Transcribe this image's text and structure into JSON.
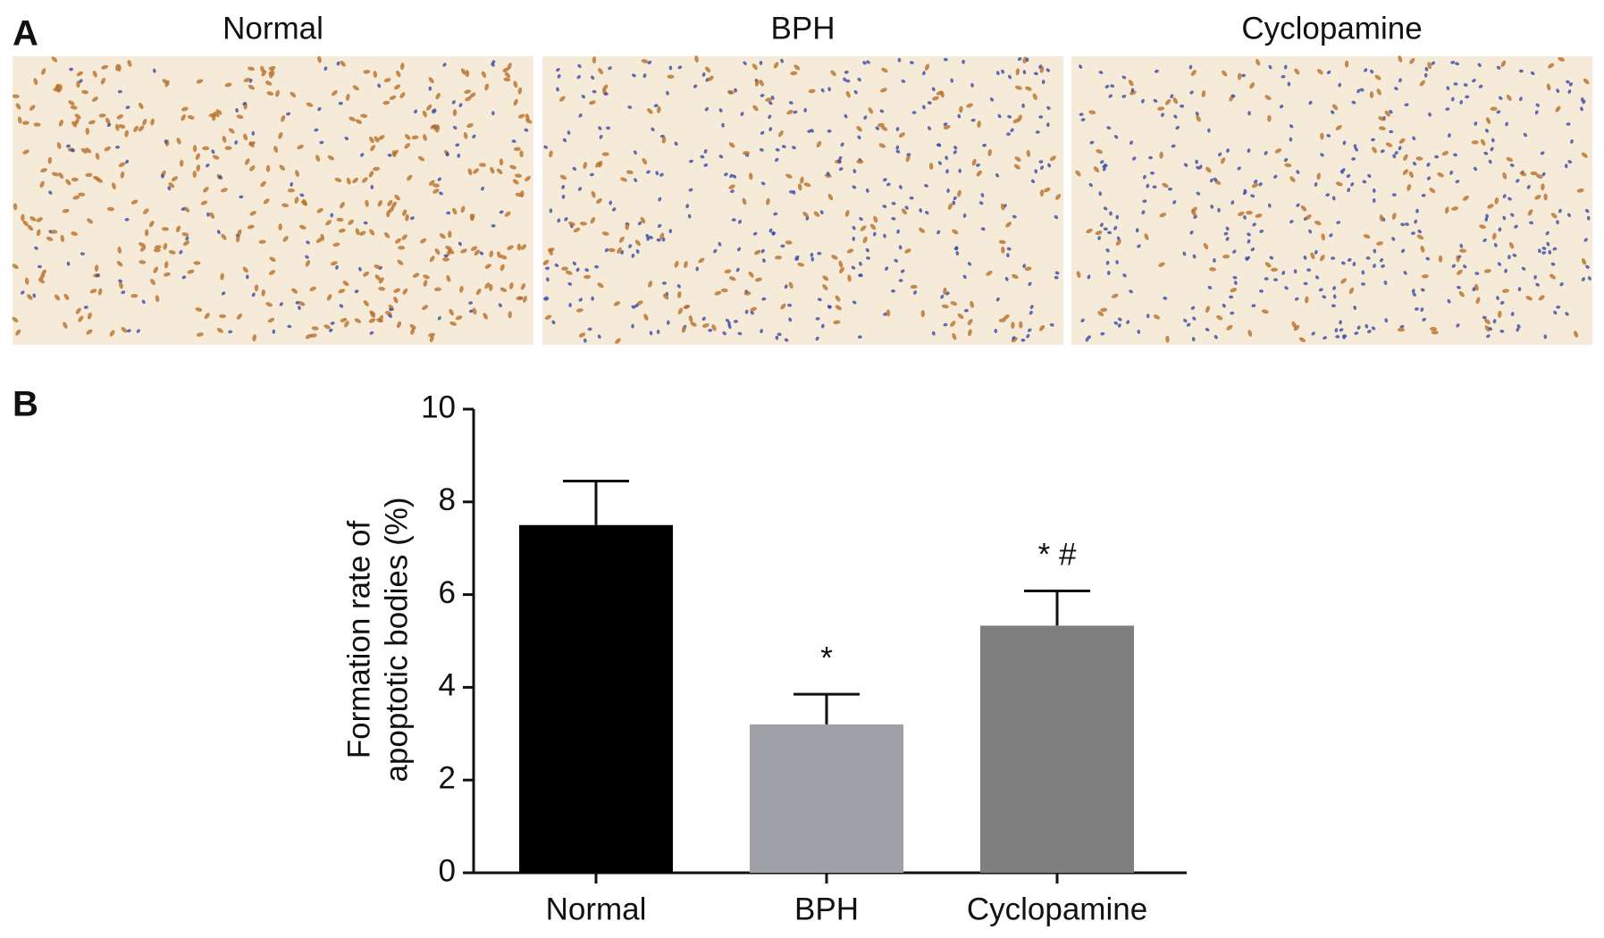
{
  "panel_a": {
    "label": "A",
    "image_titles": [
      "Normal",
      "BPH",
      "Cyclopamine"
    ]
  },
  "chart_data": {
    "type": "bar",
    "panel_label": "B",
    "y_label": [
      "Formation rate of",
      "apoptotic bodies (%)"
    ],
    "categories": [
      "Normal",
      "BPH",
      "Cyclopamine"
    ],
    "values": [
      7.5,
      3.2,
      5.33
    ],
    "errors": [
      0.95,
      0.65,
      0.75
    ],
    "colors": [
      "#000000",
      "#a0a0a8",
      "#7f7f7f"
    ],
    "annotations": [
      "*",
      "* #"
    ],
    "ylim": [
      0,
      10
    ],
    "yticks": [
      0,
      2,
      4,
      6,
      8,
      10
    ]
  }
}
